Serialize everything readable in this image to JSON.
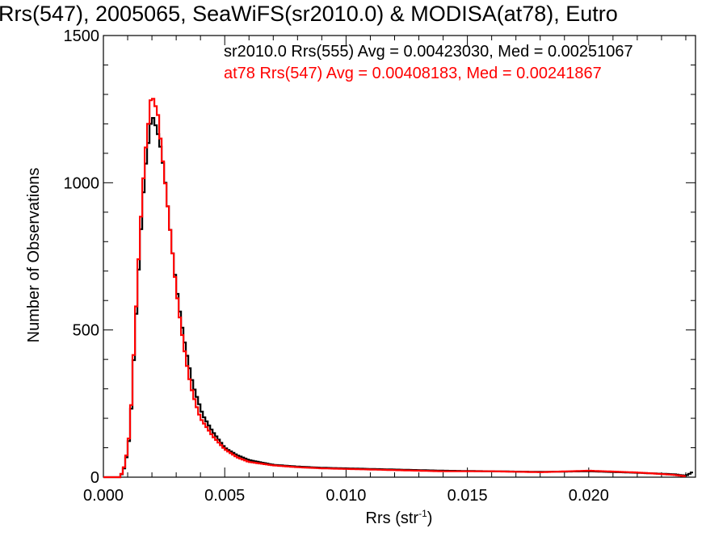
{
  "chart_data": {
    "type": "line",
    "title": "Rrs(547), 2005065, SeaWiFS(sr2010.0) & MODISA(at78), Eutro",
    "xlabel_main": "Rrs (str",
    "xlabel_sup": "-1",
    "xlabel_close": ")",
    "ylabel": "Number of Observations",
    "xlim": [
      0.0,
      0.0244
    ],
    "ylim": [
      0,
      1500
    ],
    "x_ticks": [
      0.0,
      0.005,
      0.01,
      0.015,
      0.02
    ],
    "x_tick_labels": [
      "0.000",
      "0.005",
      "0.010",
      "0.015",
      "0.020"
    ],
    "y_ticks": [
      0,
      500,
      1000,
      1500
    ],
    "y_tick_labels": [
      "0",
      "500",
      "1000",
      "1500"
    ],
    "grid": false,
    "legend_position": "top-right",
    "legend": [
      "sr2010.0 Rrs(555) Avg = 0.00423030, Med = 0.00251067",
      "at78 Rrs(547) Avg = 0.00408183, Med = 0.00241867"
    ],
    "series": [
      {
        "color": "#000000",
        "points": [
          [
            0.0,
            0
          ],
          [
            0.0007,
            0
          ],
          [
            0.0009,
            40
          ],
          [
            0.0011,
            150
          ],
          [
            0.0013,
            480
          ],
          [
            0.0015,
            780
          ],
          [
            0.0017,
            1030
          ],
          [
            0.0019,
            1170
          ],
          [
            0.002,
            1230
          ],
          [
            0.0021,
            1210
          ],
          [
            0.0023,
            1150
          ],
          [
            0.0025,
            1040
          ],
          [
            0.0027,
            880
          ],
          [
            0.0029,
            720
          ],
          [
            0.0031,
            590
          ],
          [
            0.0033,
            480
          ],
          [
            0.0035,
            390
          ],
          [
            0.0037,
            310
          ],
          [
            0.0039,
            260
          ],
          [
            0.0041,
            210
          ],
          [
            0.0045,
            155
          ],
          [
            0.005,
            100
          ],
          [
            0.0055,
            75
          ],
          [
            0.006,
            58
          ],
          [
            0.007,
            42
          ],
          [
            0.008,
            36
          ],
          [
            0.009,
            32
          ],
          [
            0.01,
            30
          ],
          [
            0.012,
            26
          ],
          [
            0.014,
            22
          ],
          [
            0.016,
            20
          ],
          [
            0.018,
            18
          ],
          [
            0.02,
            20
          ],
          [
            0.022,
            15
          ],
          [
            0.0235,
            10
          ],
          [
            0.024,
            5
          ],
          [
            0.0243,
            18
          ]
        ]
      },
      {
        "color": "#ff0000",
        "points": [
          [
            0.0,
            0
          ],
          [
            0.0007,
            0
          ],
          [
            0.0009,
            45
          ],
          [
            0.0011,
            160
          ],
          [
            0.0013,
            500
          ],
          [
            0.0015,
            820
          ],
          [
            0.0017,
            1080
          ],
          [
            0.0019,
            1240
          ],
          [
            0.002,
            1320
          ],
          [
            0.0021,
            1250
          ],
          [
            0.0022,
            1270
          ],
          [
            0.0024,
            1110
          ],
          [
            0.0026,
            960
          ],
          [
            0.0028,
            800
          ],
          [
            0.003,
            640
          ],
          [
            0.0032,
            510
          ],
          [
            0.0034,
            400
          ],
          [
            0.0036,
            310
          ],
          [
            0.0038,
            250
          ],
          [
            0.004,
            200
          ],
          [
            0.0045,
            140
          ],
          [
            0.005,
            95
          ],
          [
            0.0055,
            68
          ],
          [
            0.006,
            52
          ],
          [
            0.007,
            40
          ],
          [
            0.008,
            34
          ],
          [
            0.009,
            30
          ],
          [
            0.01,
            28
          ],
          [
            0.012,
            24
          ],
          [
            0.014,
            20
          ],
          [
            0.016,
            20
          ],
          [
            0.018,
            17
          ],
          [
            0.02,
            22
          ],
          [
            0.022,
            16
          ],
          [
            0.0235,
            8
          ],
          [
            0.024,
            3
          ]
        ]
      }
    ]
  }
}
